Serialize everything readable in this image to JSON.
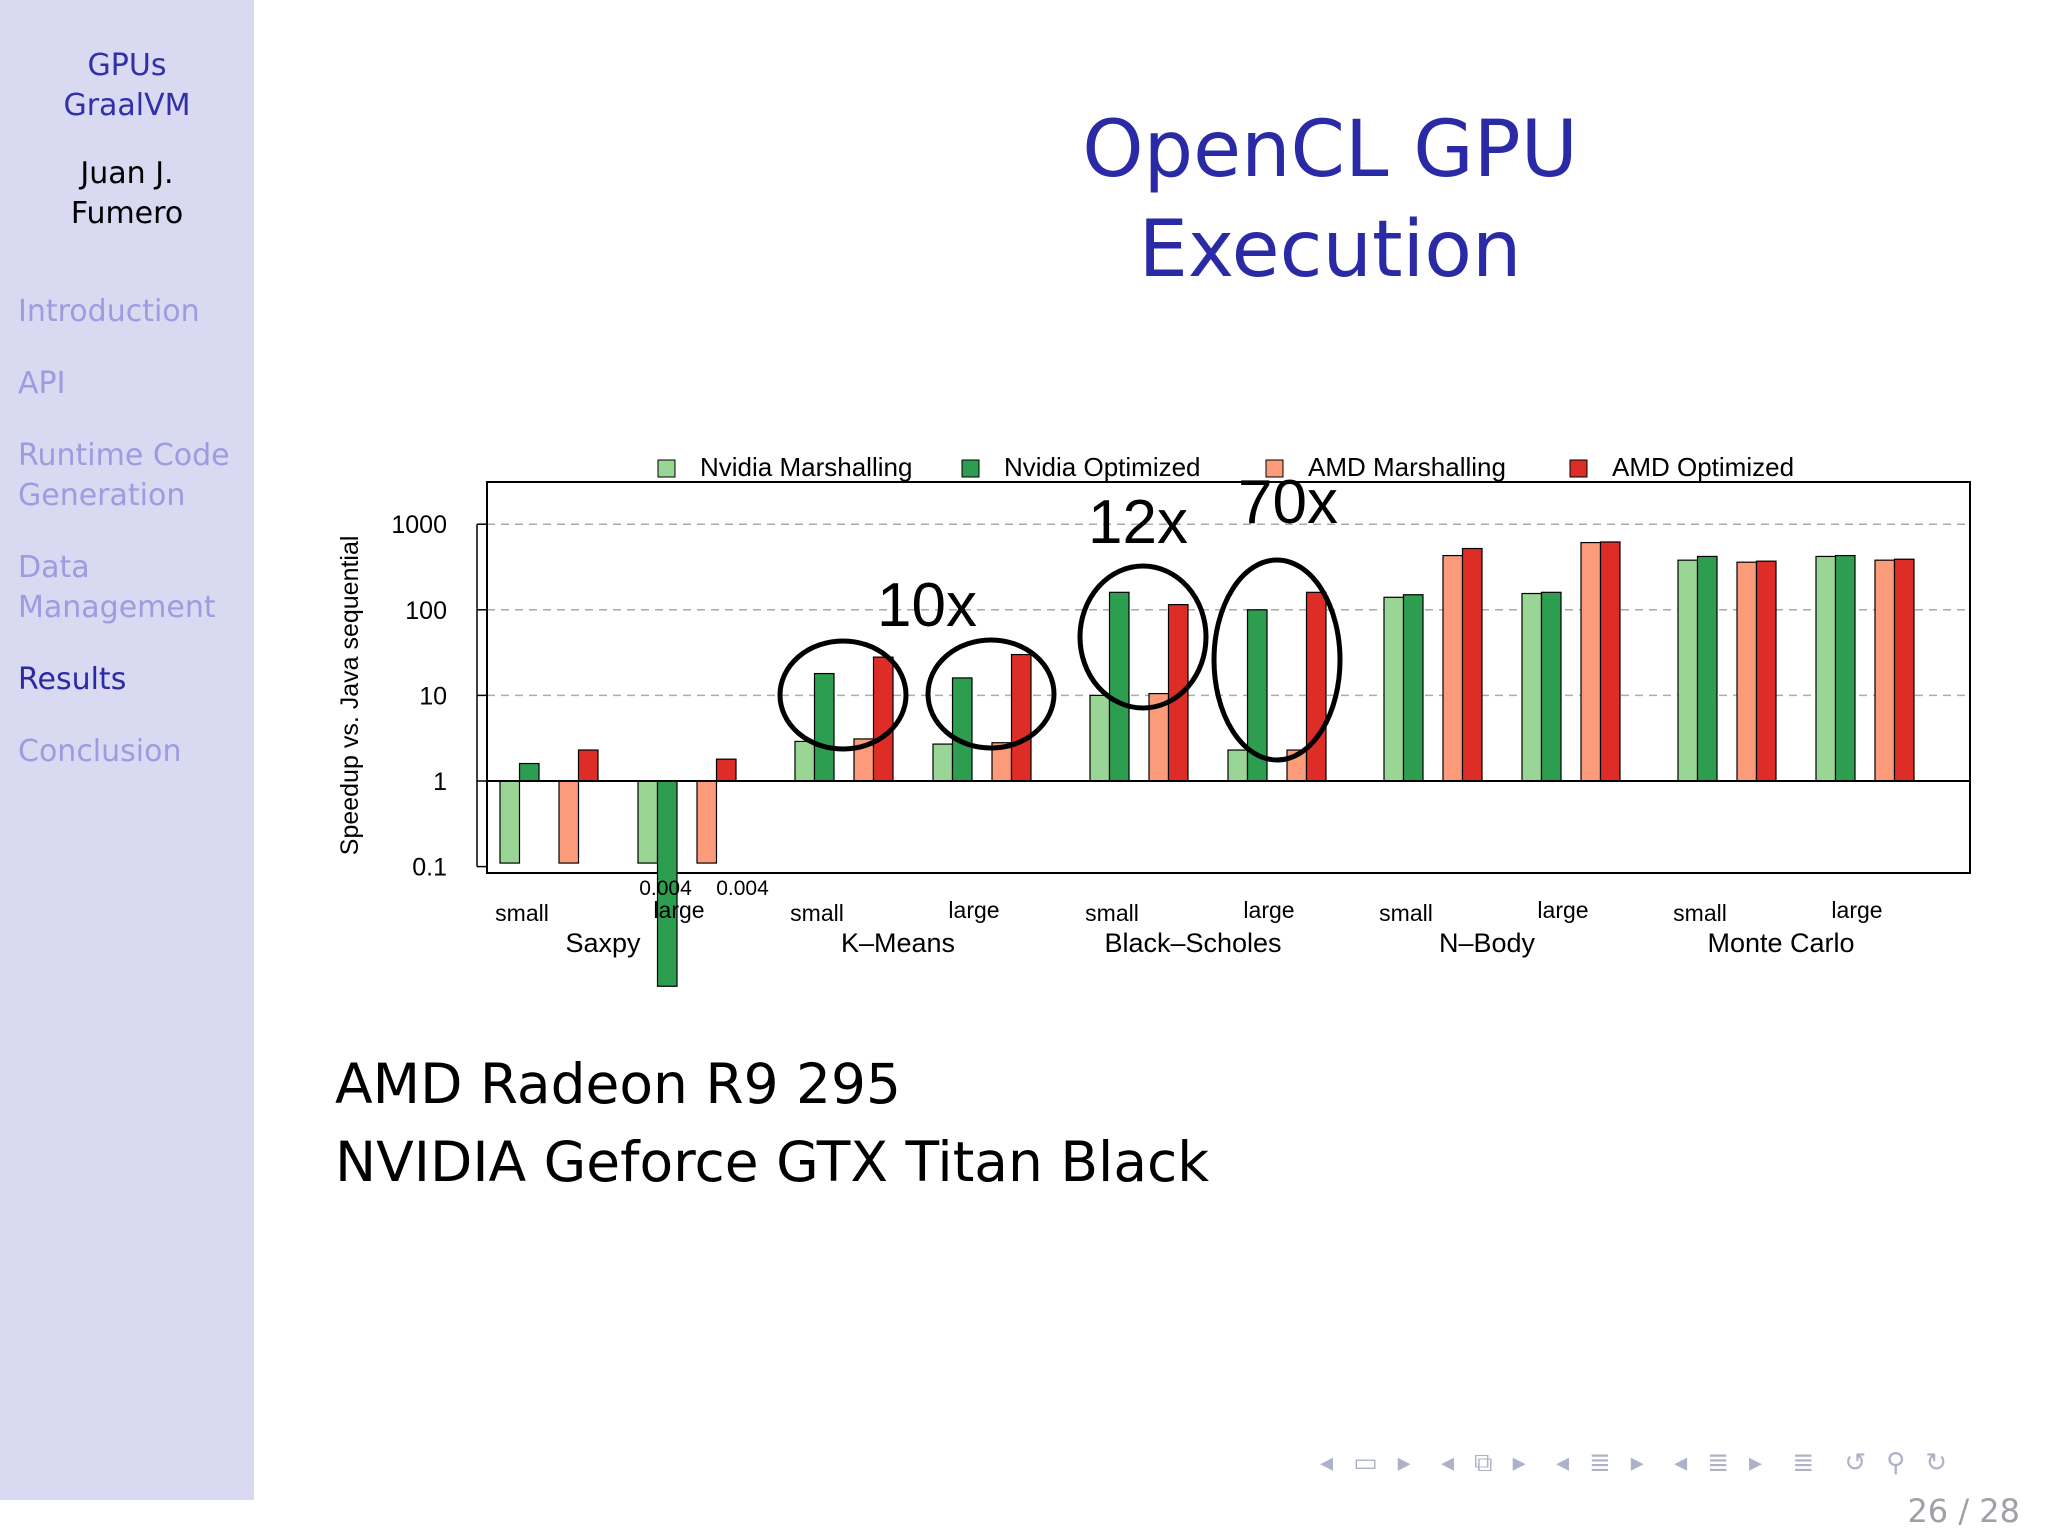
{
  "sidebar": {
    "title_lines": [
      "GPUs",
      "GraalVM"
    ],
    "author_lines": [
      "Juan J.",
      "Fumero"
    ],
    "items": [
      {
        "label": "Introduction",
        "active": false
      },
      {
        "label": "API",
        "active": false
      },
      {
        "label": "Runtime Code",
        "label2": "Generation",
        "active": false
      },
      {
        "label": "Data",
        "label2": "Management",
        "active": false
      },
      {
        "label": "Results",
        "active": true
      },
      {
        "label": "Conclusion",
        "active": false
      }
    ]
  },
  "slide": {
    "title": "OpenCL GPU Execution",
    "gpu_lines": [
      "AMD Radeon R9 295",
      "NVIDIA Geforce GTX Titan Black"
    ]
  },
  "navigation": {
    "page": "26 / 28",
    "icons": [
      "frame-prev-icon",
      "frame-icon",
      "frame-next-icon",
      "subsection-prev-icon",
      "subsection-icon",
      "subsection-next-icon",
      "section-prev-icon",
      "section-icon",
      "section-next-icon",
      "toc-prev-icon",
      "toc-icon",
      "toc-next-icon",
      "align-icon",
      "back-icon",
      "search-icon",
      "forward-icon"
    ]
  },
  "chart_data": {
    "type": "bar",
    "ylabel": "Speedup vs. Java sequential",
    "yscale": "log",
    "ylim": [
      0.07,
      2500
    ],
    "yticks": [
      "0.1",
      "1",
      "10",
      "100",
      "1000"
    ],
    "grid": "dashed horizontal at 10, 100, 1000",
    "legend_placement": "top",
    "series": [
      {
        "name": "Nvidia Marshalling",
        "color": "#99d594"
      },
      {
        "name": "Nvidia Optimized",
        "color": "#2d9e4f"
      },
      {
        "name": "AMD Marshalling",
        "color": "#fc9b7a"
      },
      {
        "name": "AMD Optimized",
        "color": "#de2d26"
      }
    ],
    "groups": [
      {
        "name": "Saxpy",
        "sizes": [
          {
            "size": "small",
            "values": [
              0.11,
              1.6,
              0.11,
              2.3
            ]
          },
          {
            "size": "large",
            "values": [
              0.11,
              0.004,
              0.11,
              1.8
            ],
            "labels": [
              "0.004",
              "0.004"
            ]
          }
        ]
      },
      {
        "name": "K–Means",
        "sizes": [
          {
            "size": "small",
            "values": [
              2.9,
              18,
              3.1,
              28
            ]
          },
          {
            "size": "large",
            "values": [
              2.7,
              16,
              2.8,
              30
            ]
          }
        ]
      },
      {
        "name": "Black–Scholes",
        "sizes": [
          {
            "size": "small",
            "values": [
              10,
              160,
              10.5,
              115
            ]
          },
          {
            "size": "large",
            "values": [
              2.3,
              100,
              2.3,
              160
            ]
          }
        ]
      },
      {
        "name": "N–Body",
        "sizes": [
          {
            "size": "small",
            "values": [
              140,
              150,
              430,
              520
            ]
          },
          {
            "size": "large",
            "values": [
              155,
              160,
              610,
              620
            ]
          }
        ]
      },
      {
        "name": "Monte Carlo",
        "sizes": [
          {
            "size": "small",
            "values": [
              380,
              420,
              360,
              370
            ]
          },
          {
            "size": "large",
            "values": [
              420,
              430,
              380,
              390
            ]
          }
        ]
      }
    ],
    "annotations": [
      "10x",
      "12x",
      "70x"
    ]
  }
}
